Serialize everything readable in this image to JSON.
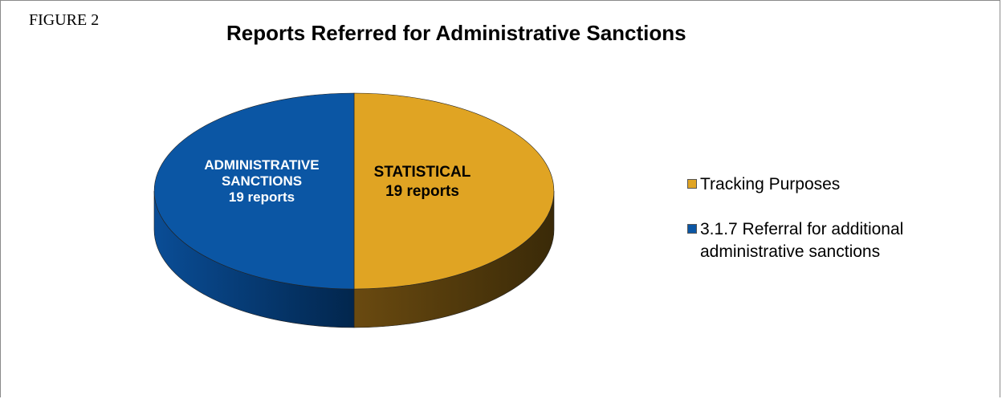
{
  "figure_label": "FIGURE 2",
  "chart_data": {
    "type": "pie",
    "title": "Reports Referred for Administrative Sanctions",
    "slices": [
      {
        "name": "Tracking Purposes",
        "value": 19,
        "color": "#E0A423",
        "label_lines": [
          "STATISTICAL",
          "19 reports"
        ]
      },
      {
        "name": "3.1.7 Referral for additional administrative sanctions",
        "value": 19,
        "color": "#0B56A4",
        "label_lines": [
          "ADMINISTRATIVE",
          "SANCTIONS",
          "19 reports"
        ]
      }
    ],
    "legend": {
      "placement": "right",
      "entries": [
        {
          "lines": [
            "Tracking Purposes"
          ],
          "color": "#E0A423"
        },
        {
          "lines": [
            "3.1.7 Referral for additional",
            "administrative sanctions"
          ],
          "color": "#0B56A4"
        }
      ]
    },
    "style": "3d"
  }
}
